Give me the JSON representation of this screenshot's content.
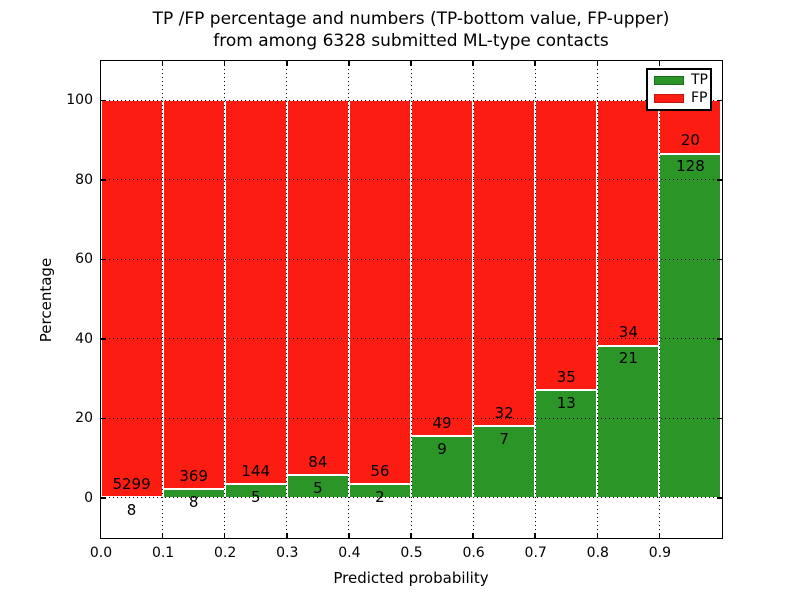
{
  "title": {
    "line1": "TP /FP percentage and numbers (TP-bottom value, FP-upper)",
    "line2": "from among 6328 submitted ML-type contacts"
  },
  "chart_data": {
    "type": "bar",
    "stacked": true,
    "normalized_to_percent": true,
    "title": "TP /FP percentage and numbers (TP-bottom value, FP-upper) from among 6328 submitted ML-type contacts",
    "total_contacts": 6328,
    "xlabel": "Predicted probability",
    "ylabel": "Percentage",
    "xlim": [
      0.0,
      1.0
    ],
    "ylim": [
      -10,
      110
    ],
    "bin_width": 0.1,
    "xticklabels": [
      "0.0",
      "0.1",
      "0.2",
      "0.3",
      "0.4",
      "0.5",
      "0.6",
      "0.7",
      "0.8",
      "0.9"
    ],
    "yticks": [
      0,
      20,
      40,
      60,
      80,
      100
    ],
    "series": [
      {
        "name": "TP",
        "color": "#2b9527",
        "edge": "#1a6b1e",
        "counts": [
          8,
          8,
          5,
          5,
          2,
          9,
          7,
          13,
          21,
          128
        ]
      },
      {
        "name": "FP",
        "color": "#fc1c12",
        "edge": "#c0140d",
        "counts": [
          5299,
          369,
          144,
          84,
          56,
          49,
          32,
          35,
          34,
          20
        ]
      }
    ],
    "tp_percent_by_bin": [
      0.15,
      2.12,
      3.36,
      5.62,
      3.45,
      15.52,
      17.95,
      27.08,
      38.18,
      86.49
    ],
    "legend": {
      "position": "upper right",
      "entries": [
        {
          "label": "TP",
          "color": "#2b9527",
          "edge": "#1a6b1e"
        },
        {
          "label": "FP",
          "color": "#fc1c12",
          "edge": "#c0140d"
        }
      ]
    },
    "grid": {
      "visible": true,
      "style": "dotted"
    }
  }
}
